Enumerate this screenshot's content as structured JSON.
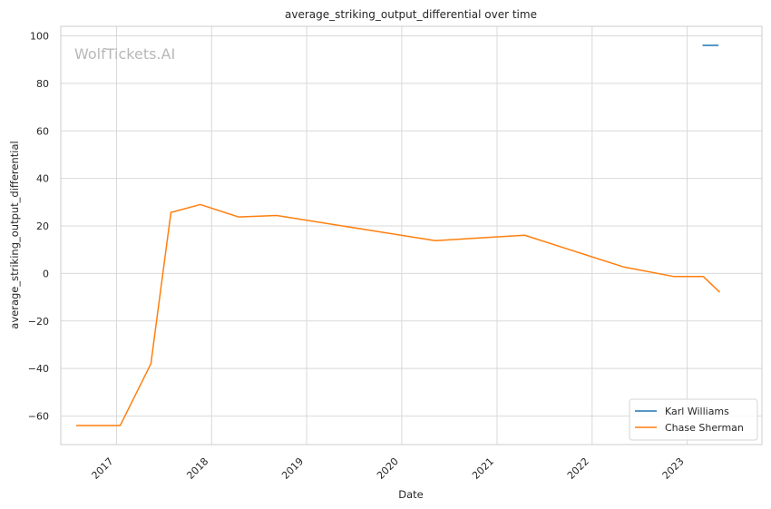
{
  "chart_data": {
    "type": "line",
    "title": "average_striking_output_differential over time",
    "xlabel": "Date",
    "ylabel": "average_striking_output_differential",
    "watermark": "WolfTickets.AI",
    "ylim": [
      -72,
      104
    ],
    "xlim": [
      "2016-06-01",
      "2023-10-15"
    ],
    "y_ticks": [
      -60,
      -40,
      -20,
      0,
      20,
      40,
      60,
      80,
      100
    ],
    "y_tick_labels": [
      "−60",
      "−40",
      "−20",
      "0",
      "20",
      "40",
      "60",
      "80",
      "100"
    ],
    "x_ticks": [
      "2017-01-01",
      "2018-01-01",
      "2019-01-01",
      "2020-01-01",
      "2021-01-01",
      "2022-01-01",
      "2023-01-01"
    ],
    "x_tick_labels": [
      "2017",
      "2018",
      "2019",
      "2020",
      "2021",
      "2022",
      "2023"
    ],
    "grid": true,
    "legend_position": "bottom-right",
    "series": [
      {
        "name": "Karl Williams",
        "color": "#1f77b4",
        "points": [
          {
            "x": "2023-03-01",
            "y": 96
          },
          {
            "x": "2023-05-01",
            "y": 96
          }
        ]
      },
      {
        "name": "Chase Sherman",
        "color": "#ff7f0e",
        "points": [
          {
            "x": "2016-07-30",
            "y": -64
          },
          {
            "x": "2017-01-15",
            "y": -64
          },
          {
            "x": "2017-05-13",
            "y": -38
          },
          {
            "x": "2017-07-29",
            "y": 25.7
          },
          {
            "x": "2017-11-19",
            "y": 29
          },
          {
            "x": "2018-04-14",
            "y": 23.8
          },
          {
            "x": "2018-09-08",
            "y": 24.4
          },
          {
            "x": "2020-05-09",
            "y": 13.8
          },
          {
            "x": "2021-04-17",
            "y": 16.1
          },
          {
            "x": "2022-04-30",
            "y": 2.8
          },
          {
            "x": "2022-11-12",
            "y": -1.3
          },
          {
            "x": "2023-03-04",
            "y": -1.3
          },
          {
            "x": "2023-05-06",
            "y": -7.9
          }
        ]
      }
    ]
  }
}
